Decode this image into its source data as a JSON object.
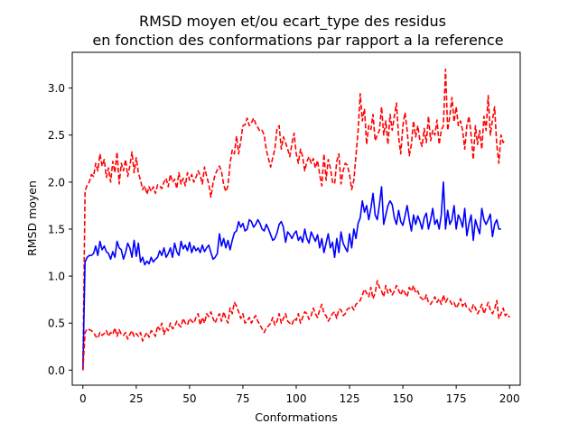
{
  "chart_data": {
    "type": "line",
    "title_line1": "RMSD moyen et/ou ecart_type des residus",
    "title_line2": "en fonction des conformations par rapport a la reference",
    "xlabel": "Conformations",
    "ylabel": "RMSD moyen",
    "xlim": [
      -5,
      205
    ],
    "ylim": [
      -0.16,
      3.38
    ],
    "x_ticks": [
      0,
      25,
      50,
      75,
      100,
      125,
      150,
      175,
      200
    ],
    "y_ticks": [
      0.0,
      0.5,
      1.0,
      1.5,
      2.0,
      2.5,
      3.0
    ],
    "x_tick_labels": [
      "0",
      "25",
      "50",
      "75",
      "100",
      "125",
      "150",
      "175",
      "200"
    ],
    "y_tick_labels": [
      "0.0",
      "0.5",
      "1.0",
      "1.5",
      "2.0",
      "2.5",
      "3.0"
    ],
    "grid": false,
    "x_step": 1,
    "series": [
      {
        "style": "dashed",
        "color": "#ff0000",
        "values": [
          0.0,
          1.9,
          1.97,
          2.0,
          2.08,
          2.06,
          2.2,
          2.12,
          2.3,
          2.17,
          2.24,
          2.05,
          2.15,
          2.0,
          2.22,
          2.1,
          2.32,
          1.98,
          2.2,
          2.12,
          2.24,
          2.06,
          2.17,
          2.32,
          2.1,
          2.26,
          2.1,
          2.02,
          1.92,
          1.96,
          1.87,
          1.95,
          1.9,
          1.95,
          1.88,
          1.97,
          1.96,
          1.93,
          2.0,
          2.04,
          1.95,
          2.08,
          2.0,
          2.03,
          1.93,
          2.1,
          1.98,
          2.04,
          1.96,
          2.1,
          2.02,
          2.08,
          2.0,
          2.05,
          2.12,
          2.07,
          1.98,
          2.16,
          2.06,
          1.98,
          1.84,
          1.99,
          2.08,
          2.13,
          2.17,
          2.11,
          1.97,
          1.9,
          1.96,
          2.2,
          2.34,
          2.3,
          2.49,
          2.3,
          2.44,
          2.6,
          2.61,
          2.68,
          2.6,
          2.63,
          2.68,
          2.62,
          2.58,
          2.54,
          2.55,
          2.5,
          2.34,
          2.25,
          2.16,
          2.26,
          2.35,
          2.57,
          2.6,
          2.35,
          2.48,
          2.42,
          2.35,
          2.27,
          2.41,
          2.52,
          2.3,
          2.2,
          2.35,
          2.27,
          2.12,
          2.22,
          2.27,
          2.2,
          2.25,
          2.15,
          2.23,
          2.08,
          1.96,
          2.3,
          2.02,
          2.24,
          2.15,
          2.0,
          1.98,
          2.22,
          2.3,
          1.98,
          2.12,
          2.2,
          2.18,
          2.08,
          1.92,
          2.02,
          2.28,
          2.54,
          2.94,
          2.65,
          2.78,
          2.4,
          2.6,
          2.56,
          2.72,
          2.44,
          2.5,
          2.55,
          2.8,
          2.5,
          2.65,
          2.4,
          2.72,
          2.55,
          2.7,
          2.84,
          2.48,
          2.3,
          2.6,
          2.74,
          2.55,
          2.28,
          2.4,
          2.65,
          2.48,
          2.6,
          2.44,
          2.38,
          2.57,
          2.42,
          2.7,
          2.44,
          2.55,
          2.5,
          2.66,
          2.4,
          2.55,
          2.6,
          3.2,
          2.55,
          2.7,
          2.9,
          2.64,
          2.8,
          2.6,
          2.65,
          2.55,
          2.35,
          2.6,
          2.7,
          2.5,
          2.24,
          2.6,
          2.4,
          2.55,
          2.35,
          2.7,
          2.55,
          2.92,
          2.5,
          2.66,
          2.8,
          2.4,
          2.2,
          2.5,
          2.42,
          2.45
        ]
      },
      {
        "style": "solid",
        "color": "#0000ff",
        "values": [
          0.0,
          1.15,
          1.2,
          1.22,
          1.22,
          1.24,
          1.32,
          1.22,
          1.37,
          1.28,
          1.32,
          1.26,
          1.24,
          1.18,
          1.26,
          1.2,
          1.37,
          1.3,
          1.28,
          1.18,
          1.25,
          1.35,
          1.3,
          1.2,
          1.38,
          1.21,
          1.35,
          1.15,
          1.2,
          1.12,
          1.16,
          1.13,
          1.2,
          1.15,
          1.18,
          1.2,
          1.27,
          1.22,
          1.3,
          1.2,
          1.24,
          1.3,
          1.2,
          1.35,
          1.26,
          1.22,
          1.37,
          1.29,
          1.33,
          1.27,
          1.36,
          1.25,
          1.32,
          1.27,
          1.3,
          1.25,
          1.33,
          1.26,
          1.3,
          1.33,
          1.25,
          1.18,
          1.2,
          1.24,
          1.45,
          1.32,
          1.4,
          1.3,
          1.38,
          1.28,
          1.38,
          1.46,
          1.48,
          1.58,
          1.52,
          1.56,
          1.48,
          1.5,
          1.6,
          1.58,
          1.52,
          1.55,
          1.6,
          1.56,
          1.5,
          1.48,
          1.55,
          1.5,
          1.44,
          1.38,
          1.4,
          1.46,
          1.55,
          1.58,
          1.52,
          1.36,
          1.47,
          1.44,
          1.4,
          1.45,
          1.48,
          1.38,
          1.42,
          1.36,
          1.5,
          1.4,
          1.35,
          1.47,
          1.42,
          1.37,
          1.44,
          1.3,
          1.4,
          1.25,
          1.35,
          1.45,
          1.3,
          1.36,
          1.2,
          1.4,
          1.25,
          1.47,
          1.35,
          1.3,
          1.26,
          1.45,
          1.3,
          1.5,
          1.4,
          1.56,
          1.62,
          1.8,
          1.68,
          1.75,
          1.6,
          1.72,
          1.88,
          1.65,
          1.6,
          1.76,
          1.95,
          1.55,
          1.65,
          1.75,
          1.8,
          1.76,
          1.62,
          1.55,
          1.7,
          1.58,
          1.54,
          1.64,
          1.75,
          1.6,
          1.48,
          1.65,
          1.55,
          1.64,
          1.58,
          1.5,
          1.62,
          1.67,
          1.5,
          1.6,
          1.72,
          1.55,
          1.6,
          1.5,
          1.65,
          2.0,
          1.5,
          1.7,
          1.55,
          1.6,
          1.75,
          1.5,
          1.65,
          1.6,
          1.52,
          1.72,
          1.43,
          1.56,
          1.65,
          1.38,
          1.6,
          1.52,
          1.45,
          1.72,
          1.6,
          1.55,
          1.6,
          1.66,
          1.42,
          1.55,
          1.6,
          1.5,
          1.5
        ]
      },
      {
        "style": "dashed",
        "color": "#ff0000",
        "values": [
          0.0,
          0.4,
          0.44,
          0.43,
          0.42,
          0.4,
          0.36,
          0.34,
          0.4,
          0.37,
          0.39,
          0.42,
          0.36,
          0.4,
          0.38,
          0.45,
          0.36,
          0.43,
          0.38,
          0.37,
          0.4,
          0.33,
          0.38,
          0.42,
          0.36,
          0.39,
          0.36,
          0.4,
          0.31,
          0.36,
          0.4,
          0.35,
          0.42,
          0.4,
          0.36,
          0.47,
          0.43,
          0.5,
          0.38,
          0.45,
          0.42,
          0.5,
          0.44,
          0.46,
          0.52,
          0.48,
          0.46,
          0.55,
          0.5,
          0.48,
          0.55,
          0.52,
          0.5,
          0.56,
          0.6,
          0.48,
          0.56,
          0.5,
          0.6,
          0.57,
          0.62,
          0.55,
          0.5,
          0.56,
          0.6,
          0.52,
          0.62,
          0.55,
          0.5,
          0.66,
          0.6,
          0.72,
          0.68,
          0.62,
          0.55,
          0.6,
          0.5,
          0.52,
          0.56,
          0.5,
          0.55,
          0.58,
          0.52,
          0.48,
          0.44,
          0.4,
          0.45,
          0.47,
          0.5,
          0.56,
          0.48,
          0.52,
          0.6,
          0.5,
          0.55,
          0.6,
          0.52,
          0.5,
          0.48,
          0.55,
          0.53,
          0.6,
          0.5,
          0.56,
          0.62,
          0.6,
          0.54,
          0.58,
          0.66,
          0.6,
          0.56,
          0.64,
          0.7,
          0.6,
          0.58,
          0.52,
          0.56,
          0.6,
          0.62,
          0.55,
          0.65,
          0.64,
          0.58,
          0.6,
          0.65,
          0.66,
          0.68,
          0.64,
          0.7,
          0.72,
          0.74,
          0.8,
          0.86,
          0.82,
          0.78,
          0.88,
          0.76,
          0.82,
          0.95,
          0.88,
          0.84,
          0.78,
          0.9,
          0.82,
          0.86,
          0.8,
          0.84,
          0.9,
          0.85,
          0.8,
          0.86,
          0.82,
          0.78,
          0.88,
          0.84,
          0.9,
          0.82,
          0.84,
          0.78,
          0.76,
          0.74,
          0.8,
          0.72,
          0.7,
          0.74,
          0.78,
          0.72,
          0.76,
          0.7,
          0.8,
          0.72,
          0.76,
          0.74,
          0.7,
          0.72,
          0.66,
          0.7,
          0.76,
          0.68,
          0.72,
          0.66,
          0.65,
          0.62,
          0.7,
          0.66,
          0.6,
          0.64,
          0.7,
          0.6,
          0.66,
          0.72,
          0.64,
          0.6,
          0.65,
          0.74,
          0.55,
          0.6,
          0.66,
          0.58,
          0.6,
          0.56
        ]
      }
    ]
  }
}
